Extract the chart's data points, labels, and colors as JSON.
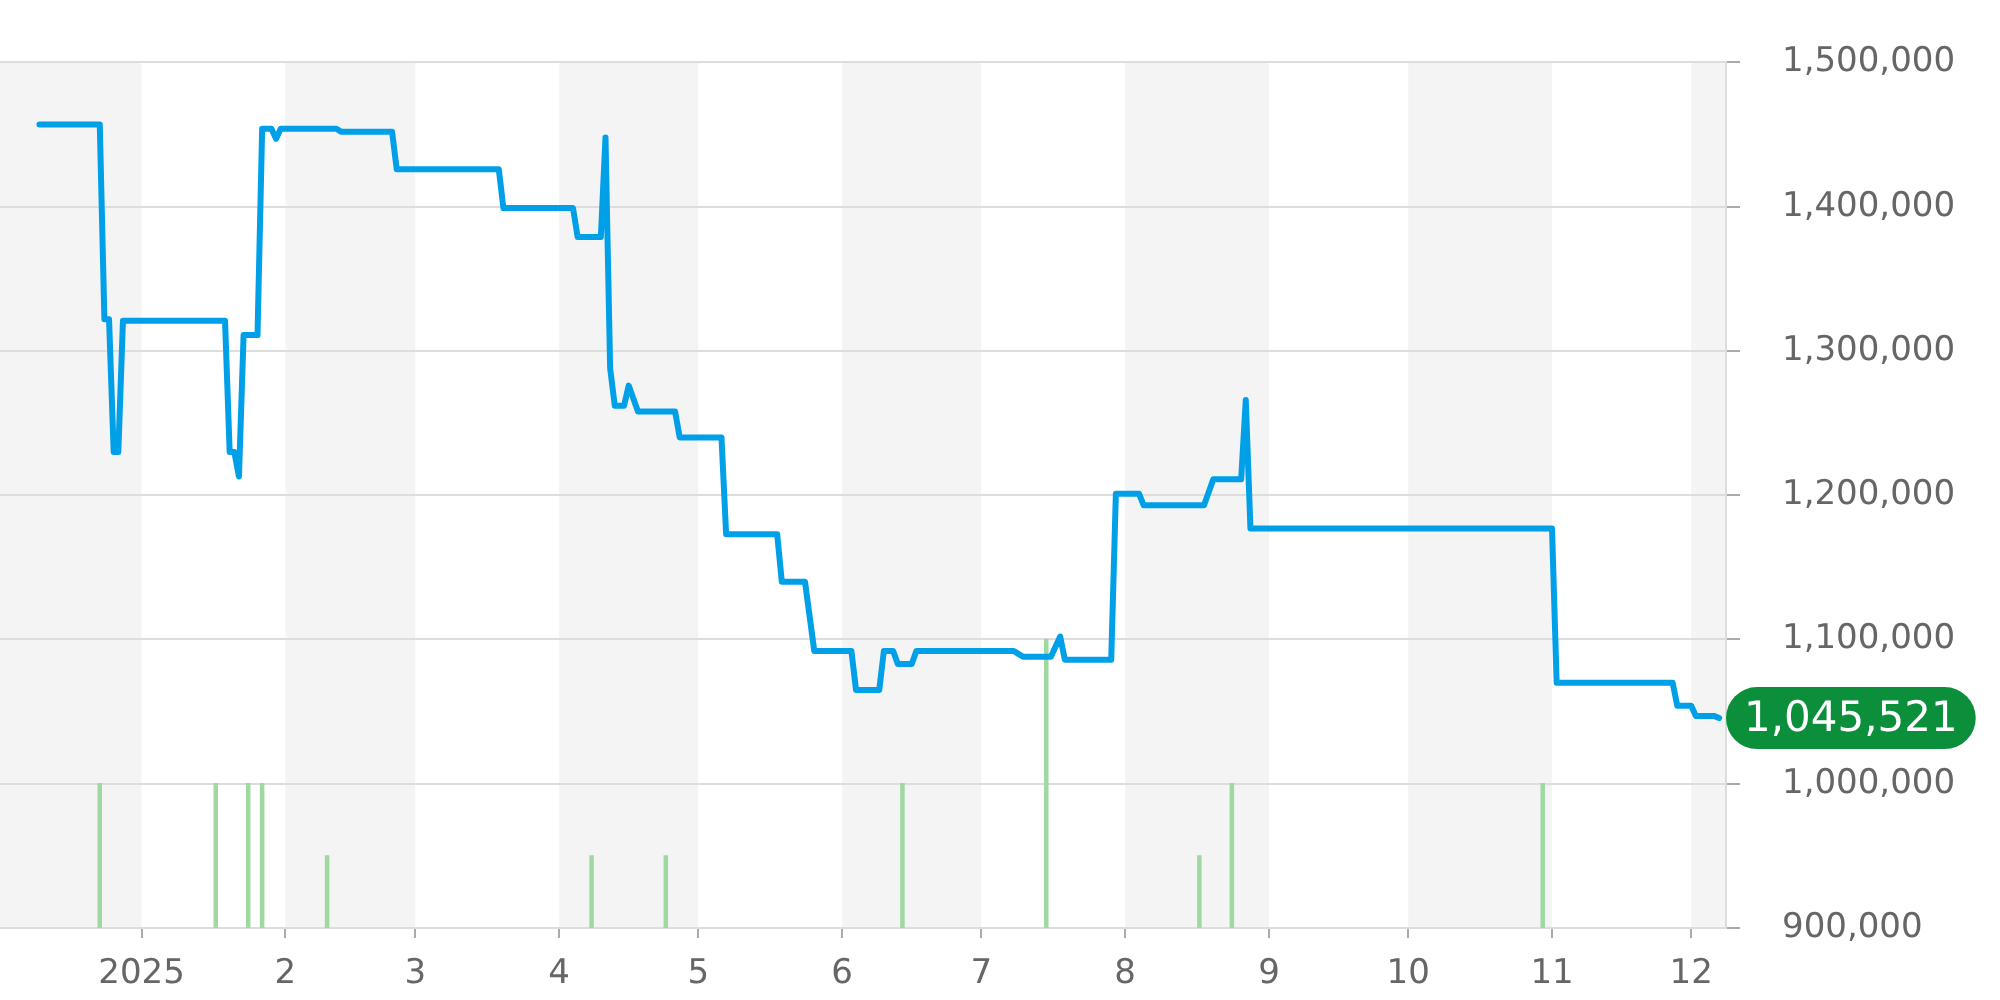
{
  "chart_data": {
    "type": "line",
    "x": [
      "2024-12-10",
      "2024-12-23",
      "2024-12-24",
      "2024-12-25",
      "2024-12-26",
      "2024-12-27",
      "2024-12-28",
      "2025-01-19",
      "2025-01-20",
      "2025-01-21",
      "2025-01-22",
      "2025-01-23",
      "2025-01-26",
      "2025-01-27",
      "2025-01-29",
      "2025-01-30",
      "2025-01-31",
      "2025-02-12",
      "2025-02-13",
      "2025-02-24",
      "2025-02-25",
      "2025-03-19",
      "2025-03-20",
      "2025-04-04",
      "2025-04-05",
      "2025-04-10",
      "2025-04-11",
      "2025-04-12",
      "2025-04-13",
      "2025-04-15",
      "2025-04-16",
      "2025-04-18",
      "2025-04-26",
      "2025-04-27",
      "2025-05-06",
      "2025-05-07",
      "2025-05-18",
      "2025-05-19",
      "2025-05-24",
      "2025-05-26",
      "2025-06-03",
      "2025-06-04",
      "2025-06-09",
      "2025-06-10",
      "2025-06-12",
      "2025-06-13",
      "2025-06-16",
      "2025-06-17",
      "2025-07-08",
      "2025-07-10",
      "2025-07-16",
      "2025-07-18",
      "2025-07-19",
      "2025-07-29",
      "2025-07-30",
      "2025-08-04",
      "2025-08-05",
      "2025-08-18",
      "2025-08-20",
      "2025-08-26",
      "2025-08-27",
      "2025-08-28",
      "2025-11-01",
      "2025-11-02",
      "2025-11-27",
      "2025-11-28",
      "2025-12-01",
      "2025-12-02",
      "2025-12-06",
      "2025-12-07"
    ],
    "series": [
      {
        "color": "#00a0e9",
        "values": [
          1457000,
          1457000,
          1322000,
          1322000,
          1230000,
          1230000,
          1321000,
          1321000,
          1230000,
          1230000,
          1213000,
          1311000,
          1311000,
          1454000,
          1454000,
          1447000,
          1454000,
          1454000,
          1452000,
          1452000,
          1426000,
          1426000,
          1399000,
          1399000,
          1379000,
          1379000,
          1448000,
          1288000,
          1262000,
          1262000,
          1276000,
          1258000,
          1258000,
          1240000,
          1240000,
          1173000,
          1173000,
          1140000,
          1140000,
          1092000,
          1092000,
          1065000,
          1065000,
          1092000,
          1092000,
          1083000,
          1083000,
          1092000,
          1092000,
          1088000,
          1088000,
          1102000,
          1086000,
          1086000,
          1201000,
          1201000,
          1193000,
          1193000,
          1211000,
          1211000,
          1266000,
          1177000,
          1177000,
          1070000,
          1070000,
          1054000,
          1054000,
          1047000,
          1047000,
          1045521
        ]
      },
      {
        "type": "bar",
        "color": "#9fd9a0",
        "x": [
          "2024-12-23",
          "2025-01-17",
          "2025-01-24",
          "2025-01-27",
          "2025-02-10",
          "2025-04-08",
          "2025-04-24",
          "2025-06-14",
          "2025-07-15",
          "2025-08-17",
          "2025-08-24",
          "2025-10-30"
        ],
        "values": [
          1000000,
          1000000,
          1000000,
          1000000,
          950000,
          950000,
          950000,
          1000000,
          1100000,
          950000,
          1000000,
          1000000
        ]
      }
    ],
    "xlim": [
      "2024-12-01T12:00",
      "2025-12-08T12:00"
    ],
    "xticks": [
      {
        "value": "2025-01-01",
        "label": "2025"
      },
      {
        "value": "2025-02-01",
        "label": "2"
      },
      {
        "value": "2025-03-01",
        "label": "3"
      },
      {
        "value": "2025-04-01",
        "label": "4"
      },
      {
        "value": "2025-05-01",
        "label": "5"
      },
      {
        "value": "2025-06-01",
        "label": "6"
      },
      {
        "value": "2025-07-01",
        "label": "7"
      },
      {
        "value": "2025-08-01",
        "label": "8"
      },
      {
        "value": "2025-09-01",
        "label": "9"
      },
      {
        "value": "2025-10-01",
        "label": "10"
      },
      {
        "value": "2025-11-01",
        "label": "11"
      },
      {
        "value": "2025-12-01",
        "label": "12"
      }
    ],
    "ylim": [
      900000,
      1500000
    ],
    "yticks": [
      {
        "value": 900000,
        "label": "900,000"
      },
      {
        "value": 1000000,
        "label": "1,000,000"
      },
      {
        "value": 1100000,
        "label": "1,100,000"
      },
      {
        "value": 1200000,
        "label": "1,200,000"
      },
      {
        "value": 1300000,
        "label": "1,300,000"
      },
      {
        "value": 1400000,
        "label": "1,400,000"
      },
      {
        "value": 1500000,
        "label": "1,500,000"
      }
    ],
    "bands": [
      {
        "axis": "x",
        "from": "2024-12-01T12:00",
        "to": "2025-01-01",
        "color": "#f4f4f4"
      },
      {
        "axis": "x",
        "from": "2025-02-01",
        "to": "2025-03-01",
        "color": "#f4f4f4"
      },
      {
        "axis": "x",
        "from": "2025-04-01",
        "to": "2025-05-01",
        "color": "#f4f4f4"
      },
      {
        "axis": "x",
        "from": "2025-06-01",
        "to": "2025-07-01",
        "color": "#f4f4f4"
      },
      {
        "axis": "x",
        "from": "2025-08-01",
        "to": "2025-09-01",
        "color": "#f4f4f4"
      },
      {
        "axis": "x",
        "from": "2025-10-01",
        "to": "2025-11-01",
        "color": "#f4f4f4"
      },
      {
        "axis": "x",
        "from": "2025-12-01",
        "to": "2025-12-08T12:00",
        "color": "#f4f4f4"
      }
    ],
    "annotations": [
      {
        "text": "1,045,521",
        "x": "2025-12-07",
        "y": 1045521
      }
    ],
    "grid": "y",
    "legend": false,
    "marker": "none"
  }
}
